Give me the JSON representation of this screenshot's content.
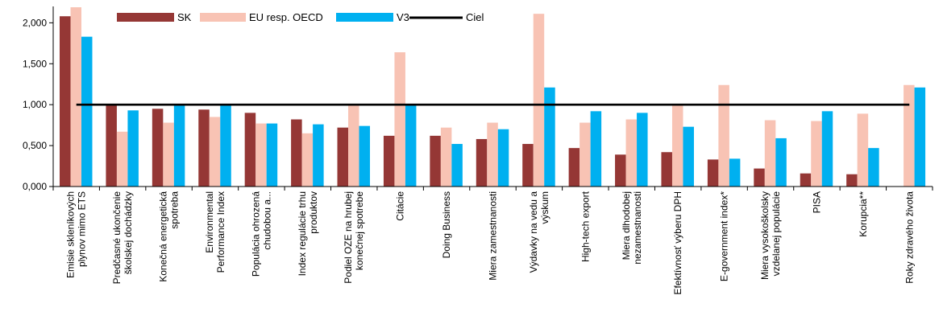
{
  "chart_data": {
    "type": "bar",
    "title": "",
    "xlabel": "",
    "ylabel": "",
    "ylim": [
      0,
      2.2
    ],
    "yticks": [
      0,
      0.5,
      1.0,
      1.5,
      2.0
    ],
    "ytick_labels": [
      "0,000",
      "0,500",
      "1,000",
      "1,500",
      "2,000"
    ],
    "grid": false,
    "legend_position": "top",
    "categories": [
      [
        "Emisie skleníkových",
        "plynov mimo ETS"
      ],
      [
        "Predčasné ukončenie",
        "školskej dochádzky"
      ],
      [
        "Konečná energetická",
        "spotreba"
      ],
      [
        "Environmental",
        "Performance Index"
      ],
      [
        "Populácia ohrozená",
        "chudobou a..."
      ],
      [
        "Index regulácie trhu",
        "produktov"
      ],
      [
        "Podiel OZE na hrubej",
        "konečnej spotrebe"
      ],
      [
        "Citácie"
      ],
      [
        "Doing Business"
      ],
      [
        "Miera zamestnanosti"
      ],
      [
        "Výdavky na vedu a",
        "výskum"
      ],
      [
        "High-tech export"
      ],
      [
        "Miera dlhodobej",
        "nezamestnanosti"
      ],
      [
        "Efektívnosť výberu DPH"
      ],
      [
        "E-government index*"
      ],
      [
        "Miera vysokoškolsky",
        "vzdelanej populácie"
      ],
      [
        "PISA"
      ],
      [
        "Korupcia**"
      ],
      [
        "Roky zdravého života"
      ]
    ],
    "series": [
      {
        "name": "SK",
        "color": "#953735",
        "values": [
          2.08,
          1.0,
          0.95,
          0.94,
          0.9,
          0.82,
          0.72,
          0.62,
          0.62,
          0.58,
          0.52,
          0.47,
          0.39,
          0.42,
          0.33,
          0.22,
          0.16,
          0.15,
          0.0
        ]
      },
      {
        "name": "EU resp. OECD",
        "color": "#F8C3B4",
        "values": [
          2.19,
          0.67,
          0.78,
          0.85,
          0.77,
          0.65,
          0.99,
          1.64,
          0.72,
          0.78,
          2.11,
          0.78,
          0.82,
          0.99,
          1.24,
          0.81,
          0.8,
          0.89,
          1.24
        ]
      },
      {
        "name": "V3",
        "color": "#00B0F0",
        "values": [
          1.83,
          0.93,
          0.99,
          0.99,
          0.77,
          0.76,
          0.74,
          0.99,
          0.52,
          0.7,
          1.21,
          0.92,
          0.9,
          0.73,
          0.34,
          0.59,
          0.92,
          0.47,
          1.21
        ]
      }
    ],
    "target": {
      "name": "Ciel",
      "value": 1.0,
      "color": "#000000"
    }
  }
}
